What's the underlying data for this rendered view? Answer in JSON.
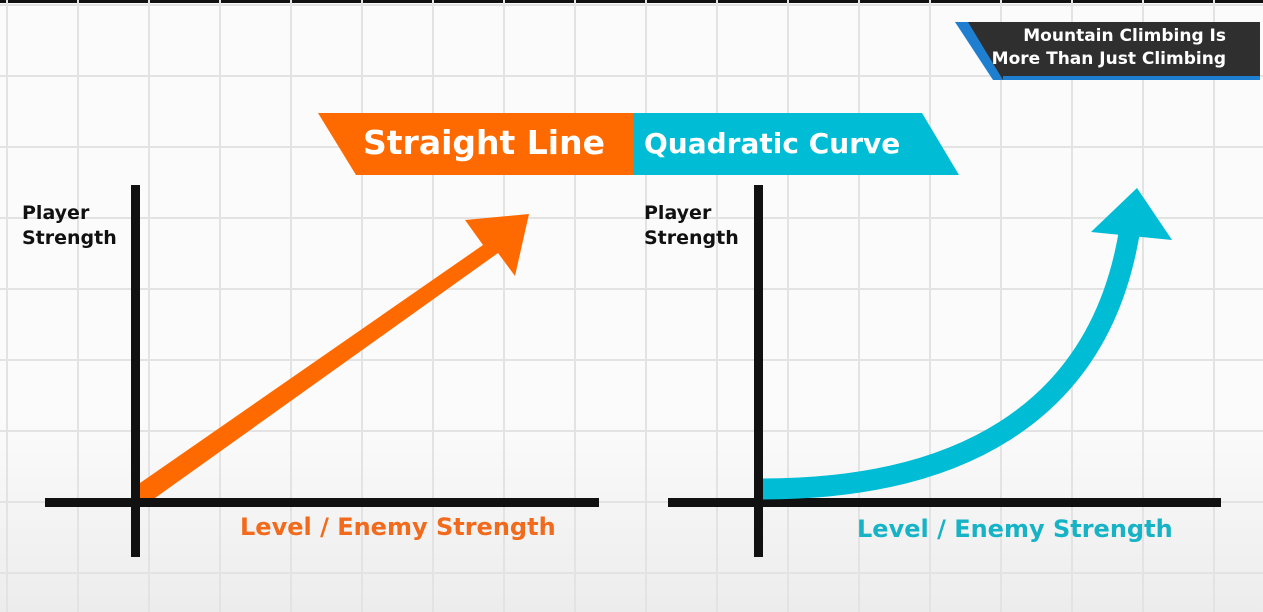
{
  "corner_title": {
    "line1": "Mountain Climbing Is",
    "line2": "More Than Just Climbing"
  },
  "banner": {
    "left_label": "Straight Line",
    "right_label": "Quadratic Curve"
  },
  "left_graph": {
    "y_label_line1": "Player",
    "y_label_line2": "Strength",
    "x_label": "Level / Enemy  Strength"
  },
  "right_graph": {
    "y_label_line1": "Player",
    "y_label_line2": "Strength",
    "x_label": "Level / Enemy  Strength"
  },
  "colors": {
    "orange": "#ff6a00",
    "cyan": "#00bcd4",
    "cyan_text": "#16b3c7",
    "orange_text": "#f26a1b",
    "axis": "#111111",
    "grid": "#e3e3e3",
    "corner_bg": "#2f2f2f",
    "corner_accent": "#1e7fd0"
  }
}
